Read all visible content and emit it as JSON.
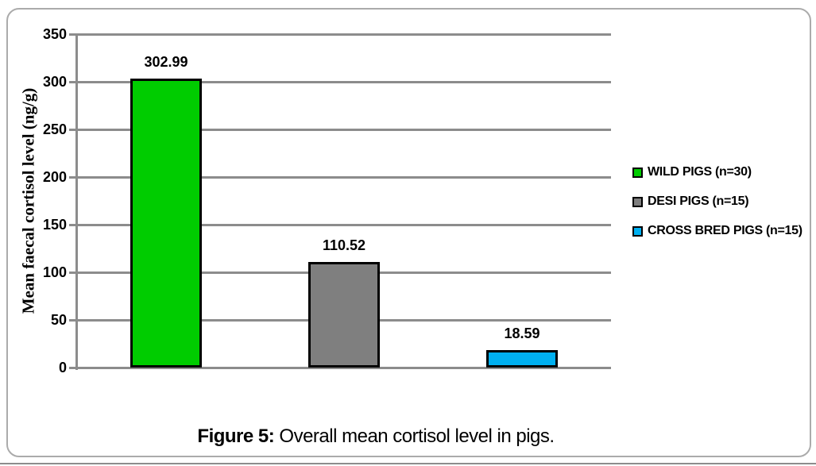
{
  "colors": {
    "grid": "#8c8c8c",
    "frame_border": "#ababab",
    "bar_border": "#000000",
    "wild_green": "#00cc00",
    "desi_gray": "#7f7f7f",
    "cross_blue": "#00b0f0",
    "text": "#000000"
  },
  "chart_data": {
    "type": "bar",
    "categories": [
      "WILD PIGS (n=30)",
      "DESI PIGS (n=15)",
      "CROSS BRED PIGS (n=15)"
    ],
    "values": [
      302.99,
      110.52,
      18.59
    ],
    "value_labels": [
      "302.99",
      "110.52",
      "18.59"
    ],
    "bar_colors": [
      "#00cc00",
      "#7f7f7f",
      "#00b0f0"
    ],
    "title": "",
    "xlabel": "",
    "ylabel": "Mean faecal cortisol level (ng/g)",
    "ylim": [
      0,
      350
    ],
    "ytick_interval": 50,
    "yticks": [
      0,
      50,
      100,
      150,
      200,
      250,
      300,
      350
    ],
    "grid": true,
    "legend_position": "right",
    "legend": [
      {
        "label": "WILD PIGS (n=30)",
        "color": "#00cc00"
      },
      {
        "label": "DESI PIGS (n=15)",
        "color": "#7f7f7f"
      },
      {
        "label": "CROSS BRED PIGS (n=15)",
        "color": "#00b0f0"
      }
    ]
  },
  "caption": {
    "prefix": "Figure 5:",
    "text": " Overall mean cortisol level in pigs."
  }
}
